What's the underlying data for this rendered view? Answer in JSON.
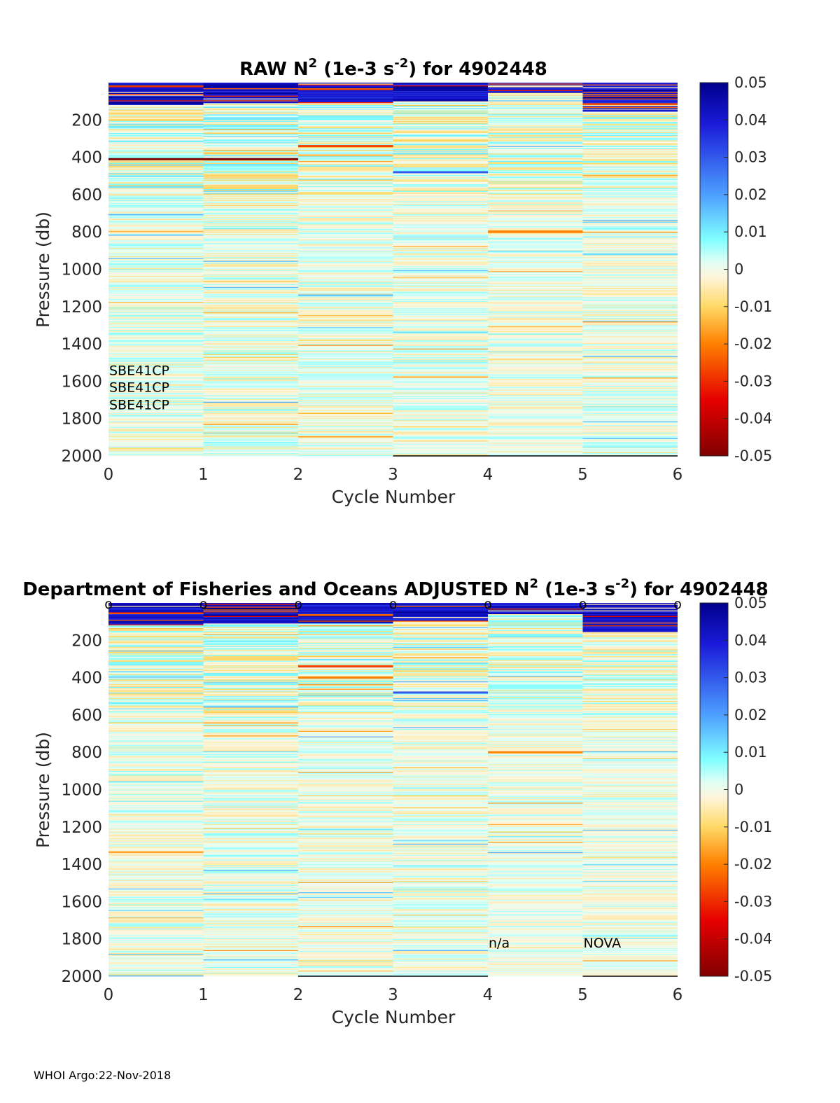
{
  "colors": {
    "colormap": [
      "#800000",
      "#e60000",
      "#ff8000",
      "#ffd966",
      "#fff5dc",
      "#e0fff5",
      "#80ffff",
      "#4d9fff",
      "#1a1ad9",
      "#00008c"
    ],
    "background": "#e6fbef",
    "sensor_line": "#000000"
  },
  "chart_data": [
    {
      "type": "heatmap",
      "title_prefix": "RAW N",
      "title_suffix": " (1e-3 s",
      "title_end": ") for 4902448",
      "title_sup1": "2",
      "title_sup2": "-2",
      "xlabel": "Cycle Number",
      "ylabel": "Pressure (db)",
      "xlim": [
        0,
        6
      ],
      "ylim": [
        0,
        2000
      ],
      "x_ticks": [
        "0",
        "1",
        "2",
        "3",
        "4",
        "5",
        "6"
      ],
      "y_ticks": [
        "200",
        "400",
        "600",
        "800",
        "1000",
        "1200",
        "1400",
        "1600",
        "1800",
        "2000"
      ],
      "colorbar": {
        "min": -0.05,
        "max": 0.05,
        "ticks": [
          "0.05",
          "0.04",
          "0.03",
          "0.02",
          "0.01",
          "0",
          "-0.01",
          "-0.02",
          "-0.03",
          "-0.04",
          "-0.05"
        ]
      },
      "columns": [
        {
          "cycle": 1,
          "surface_strong_to_db": 120,
          "noise": 0.012,
          "seed": 11,
          "bottom_line": false,
          "features": [
            {
              "p": 410,
              "v": -0.05
            }
          ]
        },
        {
          "cycle": 2,
          "surface_strong_to_db": 110,
          "noise": 0.012,
          "seed": 23,
          "bottom_line": false,
          "features": [
            {
              "p": 410,
              "v": -0.05
            }
          ]
        },
        {
          "cycle": 3,
          "surface_strong_to_db": 110,
          "noise": 0.011,
          "seed": 37,
          "bottom_line": false,
          "features": [
            {
              "p": 340,
              "v": -0.03
            }
          ]
        },
        {
          "cycle": 4,
          "surface_strong_to_db": 100,
          "noise": 0.011,
          "seed": 41,
          "bottom_line": true,
          "features": [
            {
              "p": 480,
              "v": 0.03
            }
          ]
        },
        {
          "cycle": 5,
          "surface_strong_to_db": 60,
          "noise": 0.01,
          "seed": 53,
          "bottom_line": true,
          "features": [
            {
              "p": 800,
              "v": -0.02
            }
          ]
        },
        {
          "cycle": 6,
          "surface_strong_to_db": 150,
          "noise": 0.01,
          "seed": 67,
          "bottom_line": true,
          "features": [
            {
              "p": 150,
              "v": 0.04
            }
          ]
        }
      ],
      "annotations": [
        {
          "text": "SBE41CP",
          "x": 0,
          "p": 1540
        },
        {
          "text": "SBE41CP",
          "x": 0,
          "p": 1630
        },
        {
          "text": "SBE41CP",
          "x": 0,
          "p": 1725
        }
      ],
      "markers": []
    },
    {
      "type": "heatmap",
      "title_prefix": "Department of Fisheries and Oceans  ADJUSTED N",
      "title_suffix": " (1e-3 s",
      "title_end": ") for 4902448",
      "title_sup1": "2",
      "title_sup2": "-2",
      "xlabel": "Cycle Number",
      "ylabel": "Pressure (db)",
      "xlim": [
        0,
        6
      ],
      "ylim": [
        0,
        2000
      ],
      "x_ticks": [
        "0",
        "1",
        "2",
        "3",
        "4",
        "5",
        "6"
      ],
      "y_ticks": [
        "200",
        "400",
        "600",
        "800",
        "1000",
        "1200",
        "1400",
        "1600",
        "1800",
        "2000"
      ],
      "colorbar": {
        "min": -0.05,
        "max": 0.05,
        "ticks": [
          "0.05",
          "0.04",
          "0.03",
          "0.02",
          "0.01",
          "0",
          "-0.01",
          "-0.02",
          "-0.03",
          "-0.04",
          "-0.05"
        ]
      },
      "columns": [
        {
          "cycle": 1,
          "surface_strong_to_db": 120,
          "noise": 0.011,
          "seed": 111,
          "bottom_line": false,
          "features": []
        },
        {
          "cycle": 2,
          "surface_strong_to_db": 110,
          "noise": 0.011,
          "seed": 123,
          "bottom_line": false,
          "features": []
        },
        {
          "cycle": 3,
          "surface_strong_to_db": 110,
          "noise": 0.01,
          "seed": 137,
          "bottom_line": true,
          "features": [
            {
              "p": 340,
              "v": -0.03
            },
            {
              "p": 400,
              "v": -0.02
            }
          ]
        },
        {
          "cycle": 4,
          "surface_strong_to_db": 100,
          "noise": 0.01,
          "seed": 141,
          "bottom_line": true,
          "features": [
            {
              "p": 480,
              "v": 0.03
            }
          ]
        },
        {
          "cycle": 5,
          "surface_strong_to_db": 60,
          "noise": 0.009,
          "seed": 153,
          "bottom_line": false,
          "features": [
            {
              "p": 800,
              "v": -0.02
            }
          ]
        },
        {
          "cycle": 6,
          "surface_strong_to_db": 150,
          "noise": 0.009,
          "seed": 167,
          "bottom_line": true,
          "features": [
            {
              "p": 150,
              "v": 0.04
            }
          ]
        }
      ],
      "annotations": [
        {
          "text": "n/a",
          "x": 4,
          "p": 1820
        },
        {
          "text": "NOVA",
          "x": 5,
          "p": 1820
        }
      ],
      "markers": [
        {
          "text": "o",
          "x": 0,
          "p": 0
        },
        {
          "text": "o",
          "x": 1,
          "p": 0
        },
        {
          "text": "o",
          "x": 2,
          "p": 0
        },
        {
          "text": "o",
          "x": 3,
          "p": 0
        },
        {
          "text": "o",
          "x": 4,
          "p": 0
        },
        {
          "text": "o",
          "x": 5,
          "p": 0
        },
        {
          "text": "o",
          "x": 6,
          "p": 0
        }
      ]
    }
  ],
  "footer": "WHOI Argo:22-Nov-2018"
}
